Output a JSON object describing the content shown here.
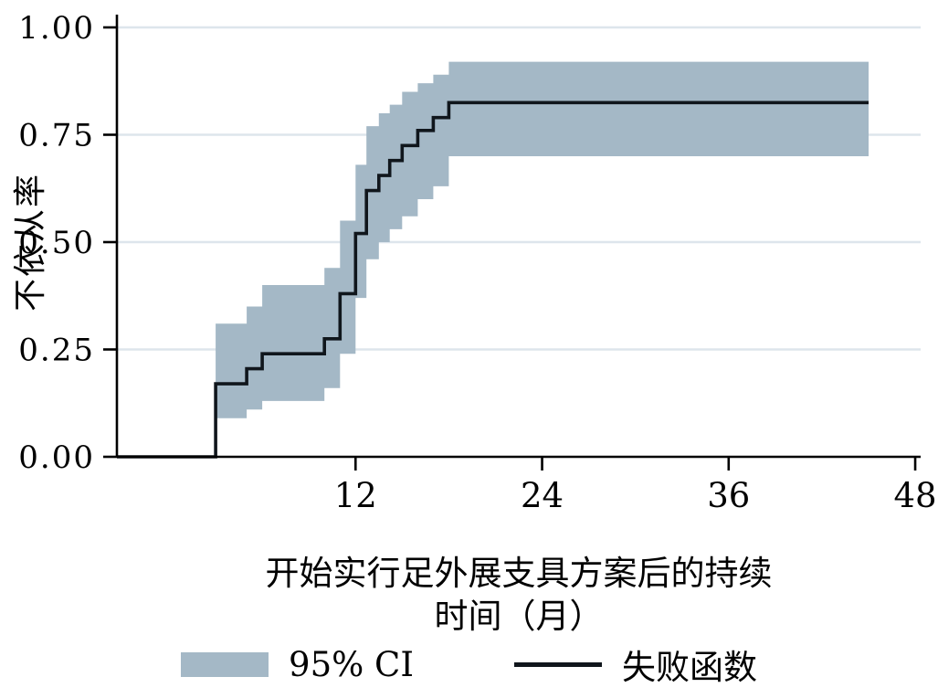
{
  "figure": {
    "background": "#ffffff",
    "ylabel": "不依从率",
    "xlabel_line1": "开始实行足外展支具方案后的持续",
    "xlabel_line2": "时间（月）",
    "legend_ci_label": "95% CI",
    "legend_failure_label": "失败函数"
  },
  "chart_data": {
    "type": "line",
    "subtype": "kaplan-meier-failure-step-with-ci-band",
    "title": "",
    "xlabel": "开始实行足外展支具方案后的持续时间（月）",
    "ylabel": "不依从率",
    "xlim": [
      -3.35,
      48.35
    ],
    "ylim": [
      0,
      1
    ],
    "xticks": [
      12,
      24,
      36,
      48
    ],
    "xtick_labels": [
      "12",
      "24",
      "36",
      "48"
    ],
    "yticks": [
      0,
      0.25,
      0.5,
      0.75,
      1
    ],
    "ytick_labels": [
      "0.00",
      "0.25",
      "0.50",
      "0.75",
      "1.00"
    ],
    "grid": "horizontal-only",
    "legend_position": "bottom-center",
    "colors": {
      "ci_band": "#a4b8c6",
      "failure_line": "#10161c",
      "gridline": "#dde5ec",
      "axis": "#000000"
    },
    "series": [
      {
        "name": "失败函数",
        "type": "step",
        "points": [
          {
            "t": 0,
            "v": 0
          },
          {
            "t": 3,
            "v": 0.17
          },
          {
            "t": 5,
            "v": 0.205
          },
          {
            "t": 6,
            "v": 0.24
          },
          {
            "t": 10,
            "v": 0.275
          },
          {
            "t": 11,
            "v": 0.38
          },
          {
            "t": 12,
            "v": 0.52
          },
          {
            "t": 12.7,
            "v": 0.62
          },
          {
            "t": 13.5,
            "v": 0.655
          },
          {
            "t": 14.2,
            "v": 0.69
          },
          {
            "t": 15,
            "v": 0.725
          },
          {
            "t": 16,
            "v": 0.76
          },
          {
            "t": 17,
            "v": 0.79
          },
          {
            "t": 18,
            "v": 0.825
          },
          {
            "t": 45,
            "v": 0.825
          }
        ]
      },
      {
        "name": "95% CI",
        "type": "band",
        "points": [
          {
            "t": 3,
            "lo": 0.09,
            "hi": 0.31
          },
          {
            "t": 5,
            "lo": 0.11,
            "hi": 0.35
          },
          {
            "t": 6,
            "lo": 0.13,
            "hi": 0.4
          },
          {
            "t": 10,
            "lo": 0.16,
            "hi": 0.44
          },
          {
            "t": 11,
            "lo": 0.24,
            "hi": 0.55
          },
          {
            "t": 12,
            "lo": 0.37,
            "hi": 0.68
          },
          {
            "t": 12.7,
            "lo": 0.46,
            "hi": 0.77
          },
          {
            "t": 13.5,
            "lo": 0.5,
            "hi": 0.8
          },
          {
            "t": 14.2,
            "lo": 0.53,
            "hi": 0.82
          },
          {
            "t": 15,
            "lo": 0.56,
            "hi": 0.85
          },
          {
            "t": 16,
            "lo": 0.6,
            "hi": 0.87
          },
          {
            "t": 17,
            "lo": 0.63,
            "hi": 0.89
          },
          {
            "t": 18,
            "lo": 0.7,
            "hi": 0.92
          },
          {
            "t": 45,
            "lo": 0.7,
            "hi": 0.92
          }
        ]
      }
    ]
  }
}
